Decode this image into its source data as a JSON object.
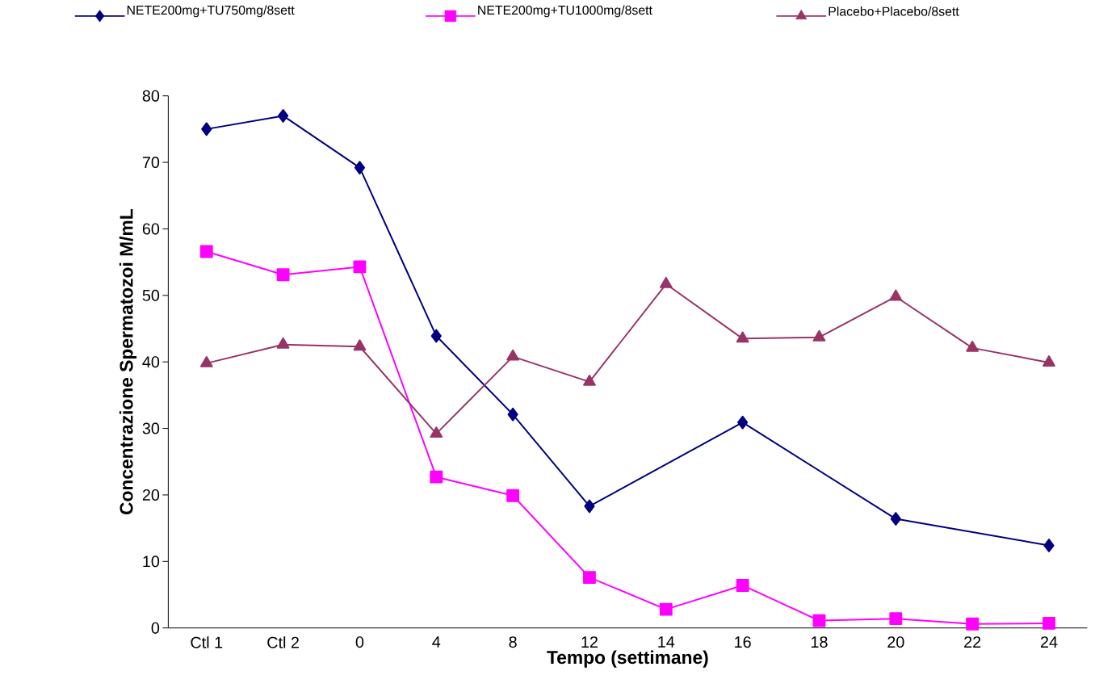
{
  "chart_data": {
    "type": "line",
    "categories": [
      "Ctl 1",
      "Ctl 2",
      "0",
      "4",
      "8",
      "12",
      "14",
      "16",
      "18",
      "20",
      "22",
      "24"
    ],
    "series": [
      {
        "name": "NETE200mg+TU750mg/8sett",
        "color": "#000080",
        "marker": "diamond",
        "values": [
          75,
          77,
          69.2,
          43.9,
          32.1,
          18.3,
          null,
          30.9,
          null,
          16.4,
          null,
          12.4
        ]
      },
      {
        "name": "NETE200mg+TU1000mg/8sett",
        "color": "#ff00ff",
        "marker": "square",
        "values": [
          56.6,
          53.1,
          54.3,
          22.7,
          19.9,
          7.6,
          2.8,
          6.4,
          1.1,
          1.4,
          0.6,
          0.7
        ]
      },
      {
        "name": "Placebo+Placebo/8sett",
        "color": "#993366",
        "marker": "triangle",
        "values": [
          39.8,
          42.6,
          42.3,
          29.2,
          40.8,
          37.0,
          51.7,
          43.5,
          43.7,
          49.8,
          42.1,
          39.9
        ]
      }
    ],
    "xlabel": "Tempo (settimane)",
    "ylabel": "Concentrazione Spermatozoi M/mL",
    "ylim": [
      0,
      80
    ],
    "yticks": [
      0,
      10,
      20,
      30,
      40,
      50,
      60,
      70,
      80
    ],
    "legend": "top",
    "grid": false
  }
}
